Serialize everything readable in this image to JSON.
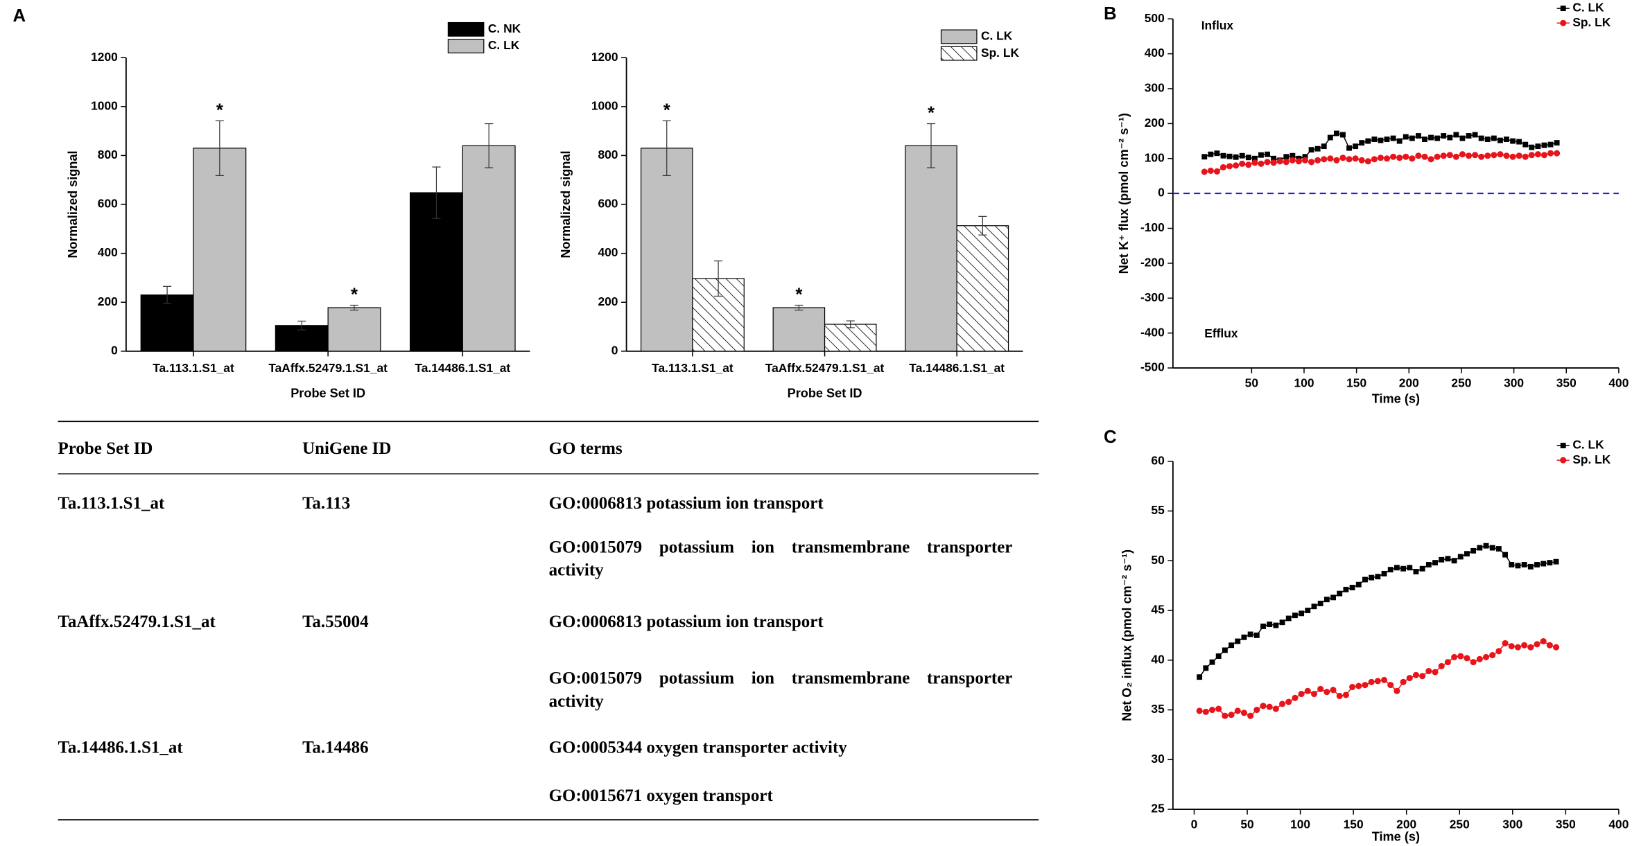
{
  "panel_labels": [
    "A",
    "B",
    "C"
  ],
  "chart_data": [
    {
      "type": "bar",
      "ylabel": "Normalized signal",
      "xlabel": "Probe Set ID",
      "categories": [
        "Ta.113.1.S1_at",
        "TaAffx.52479.1.S1_at",
        "Ta.14486.1.S1_at"
      ],
      "series": [
        {
          "name": "C. NK",
          "color": "#000000",
          "values": [
            230,
            105,
            648
          ],
          "errors": [
            35,
            18,
            105
          ],
          "annotations": [
            null,
            null,
            null
          ]
        },
        {
          "name": "C. LK",
          "color": "#c0c0c0",
          "values": [
            830,
            178,
            840
          ],
          "errors": [
            112,
            10,
            90
          ],
          "annotations": [
            "*",
            "*",
            null
          ]
        }
      ],
      "ylim": [
        0,
        1200
      ],
      "yticks": [
        0,
        200,
        400,
        600,
        800,
        1000,
        1200
      ],
      "legend": "upper right"
    },
    {
      "type": "bar",
      "ylabel": "Normalized signal",
      "xlabel": "Probe Set ID",
      "categories": [
        "Ta.113.1.S1_at",
        "TaAffx.52479.1.S1_at",
        "Ta.14486.1.S1_at"
      ],
      "series": [
        {
          "name": "C. LK",
          "color": "#c0c0c0",
          "values": [
            830,
            178,
            840
          ],
          "errors": [
            112,
            10,
            90
          ],
          "annotations": [
            "*",
            "*",
            "*"
          ]
        },
        {
          "name": "Sp. LK",
          "color": "#000000",
          "pattern": "hatch",
          "values": [
            297,
            110,
            513
          ],
          "errors": [
            72,
            14,
            38
          ],
          "annotations": [
            null,
            null,
            null
          ]
        }
      ],
      "ylim": [
        0,
        1200
      ],
      "yticks": [
        0,
        200,
        400,
        600,
        800,
        1000,
        1200
      ],
      "legend": "upper right"
    },
    {
      "type": "line",
      "ylabel": "Net K⁺ flux (pmol cm⁻² s⁻¹)",
      "xlabel": "Time (s)",
      "annotations": [
        "Influx",
        "Efflux"
      ],
      "x": [
        5,
        11,
        17,
        23,
        29,
        35,
        41,
        47,
        53,
        59,
        65,
        71,
        77,
        83,
        89,
        95,
        101,
        107,
        113,
        119,
        125,
        131,
        137,
        143,
        149,
        155,
        161,
        167,
        173,
        179,
        185,
        191,
        197,
        203,
        209,
        215,
        221,
        227,
        233,
        239,
        245,
        251,
        257,
        263,
        269,
        275,
        281,
        287,
        293,
        299,
        305,
        311,
        317,
        323,
        329,
        335,
        341
      ],
      "series": [
        {
          "name": "C. LK",
          "color": "#000000",
          "marker": "square",
          "values": [
            105,
            112,
            115,
            108,
            106,
            104,
            108,
            103,
            100,
            110,
            112,
            100,
            95,
            105,
            108,
            100,
            105,
            125,
            128,
            135,
            160,
            172,
            168,
            130,
            135,
            145,
            150,
            155,
            152,
            155,
            158,
            150,
            162,
            158,
            165,
            155,
            160,
            158,
            165,
            160,
            168,
            158,
            165,
            168,
            158,
            155,
            158,
            152,
            155,
            150,
            148,
            140,
            132,
            135,
            138,
            140,
            145
          ]
        },
        {
          "name": "Sp. LK",
          "color": "#e8141b",
          "marker": "circle",
          "values": [
            62,
            65,
            63,
            75,
            78,
            80,
            85,
            82,
            88,
            85,
            90,
            88,
            92,
            90,
            95,
            92,
            95,
            90,
            95,
            98,
            100,
            95,
            102,
            98,
            100,
            95,
            92,
            98,
            102,
            100,
            105,
            102,
            105,
            100,
            108,
            105,
            98,
            105,
            108,
            110,
            105,
            112,
            108,
            110,
            105,
            108,
            110,
            112,
            108,
            105,
            108,
            105,
            110,
            112,
            110,
            115,
            115
          ]
        }
      ],
      "reference_line": {
        "y": 0,
        "color": "#1a1acc",
        "style": "dashed"
      },
      "xlim": [
        -25,
        400
      ],
      "xticks": [
        50,
        100,
        150,
        200,
        250,
        300,
        350,
        400
      ],
      "ylim": [
        -500,
        500
      ],
      "yticks": [
        -500,
        -400,
        -300,
        -200,
        -100,
        0,
        100,
        200,
        300,
        400,
        500
      ],
      "legend": "upper right"
    },
    {
      "type": "line",
      "ylabel": "Net O₂ influx (pmol cm⁻² s⁻¹)",
      "xlabel": "Time (s)",
      "x": [
        5,
        11,
        17,
        23,
        29,
        35,
        41,
        47,
        53,
        59,
        65,
        71,
        77,
        83,
        89,
        95,
        101,
        107,
        113,
        119,
        125,
        131,
        137,
        143,
        149,
        155,
        161,
        167,
        173,
        179,
        185,
        191,
        197,
        203,
        209,
        215,
        221,
        227,
        233,
        239,
        245,
        251,
        257,
        263,
        269,
        275,
        281,
        287,
        293,
        299,
        305,
        311,
        317,
        323,
        329,
        335,
        341
      ],
      "series": [
        {
          "name": "C. LK",
          "color": "#000000",
          "marker": "square",
          "values": [
            38.3,
            39.2,
            39.8,
            40.4,
            41.0,
            41.5,
            41.9,
            42.3,
            42.6,
            42.5,
            43.4,
            43.6,
            43.5,
            43.8,
            44.2,
            44.5,
            44.7,
            45.0,
            45.4,
            45.7,
            46.1,
            46.3,
            46.7,
            47.1,
            47.3,
            47.6,
            48.1,
            48.3,
            48.4,
            48.7,
            49.1,
            49.3,
            49.2,
            49.3,
            48.9,
            49.2,
            49.6,
            49.8,
            50.1,
            50.2,
            50.0,
            50.4,
            50.7,
            51.0,
            51.3,
            51.5,
            51.3,
            51.2,
            50.6,
            49.6,
            49.5,
            49.6,
            49.4,
            49.6,
            49.7,
            49.8,
            49.9
          ]
        },
        {
          "name": "Sp. LK",
          "color": "#e8141b",
          "marker": "circle",
          "values": [
            34.9,
            34.8,
            35.0,
            35.1,
            34.4,
            34.5,
            34.9,
            34.7,
            34.4,
            35.0,
            35.4,
            35.3,
            35.1,
            35.6,
            35.8,
            36.2,
            36.6,
            36.9,
            36.6,
            37.1,
            36.8,
            37.0,
            36.4,
            36.5,
            37.3,
            37.4,
            37.5,
            37.8,
            37.9,
            38.0,
            37.5,
            36.9,
            37.8,
            38.2,
            38.5,
            38.4,
            38.9,
            38.8,
            39.4,
            39.8,
            40.3,
            40.4,
            40.2,
            39.8,
            40.1,
            40.3,
            40.5,
            40.9,
            41.7,
            41.4,
            41.3,
            41.5,
            41.3,
            41.6,
            41.9,
            41.5,
            41.3
          ]
        }
      ],
      "xlim": [
        -20,
        400
      ],
      "xticks": [
        0,
        50,
        100,
        150,
        200,
        250,
        300,
        350,
        400
      ],
      "ylim": [
        25,
        60
      ],
      "yticks": [
        25,
        30,
        35,
        40,
        45,
        50,
        55,
        60
      ],
      "legend": "upper right"
    }
  ],
  "table": {
    "header": [
      "Probe Set ID",
      "UniGene ID",
      "GO terms"
    ],
    "rows": [
      [
        "Ta.113.1.S1_at",
        "Ta.113",
        "GO:0006813 potassium ion transport"
      ],
      [
        null,
        null,
        "GO:0015079 potassium ion transmembrane transporter activity"
      ],
      [
        "TaAffx.52479.1.S1_at",
        "Ta.55004",
        "GO:0006813 potassium ion transport"
      ],
      [
        null,
        null,
        "GO:0015079 potassium ion transmembrane transporter activity"
      ],
      [
        "Ta.14486.1.S1_at",
        "Ta.14486",
        "GO:0005344 oxygen transporter activity"
      ],
      [
        null,
        null,
        "GO:0015671 oxygen transport"
      ]
    ]
  }
}
